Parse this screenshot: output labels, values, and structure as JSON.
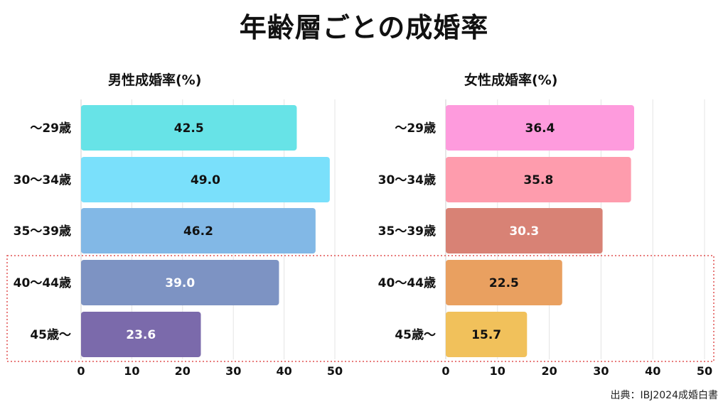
{
  "title": "年齢層ごとの成婚率",
  "source": "出典：IBJ2024成婚白書",
  "colors": {
    "highlight_border": "#e05050",
    "grid": "#e4e4e4",
    "axis": "#cfcfcf",
    "label_dark": "#111111",
    "label_light": "#ffffff"
  },
  "chart_data": [
    {
      "type": "bar",
      "orientation": "horizontal",
      "title": "男性成婚率(%)",
      "categories": [
        "～29歳",
        "30～34歳",
        "35～39歳",
        "40～44歳",
        "45歳～"
      ],
      "values": [
        42.5,
        49.0,
        46.2,
        39.0,
        23.6
      ],
      "value_labels": [
        "42.5",
        "49.0",
        "46.2",
        "39.0",
        "23.6"
      ],
      "bar_colors": [
        "#67e3e7",
        "#7ae0fb",
        "#82b8e6",
        "#7d93c3",
        "#7b6aab"
      ],
      "label_colors": [
        "#111111",
        "#111111",
        "#111111",
        "#ffffff",
        "#ffffff"
      ],
      "xlim": [
        0,
        50
      ],
      "xticks": [
        "0",
        "10",
        "20",
        "30",
        "40",
        "50"
      ],
      "grid": true
    },
    {
      "type": "bar",
      "orientation": "horizontal",
      "title": "女性成婚率(%)",
      "categories": [
        "～29歳",
        "30～34歳",
        "35～39歳",
        "40～44歳",
        "45歳～"
      ],
      "values": [
        36.4,
        35.8,
        30.3,
        22.5,
        15.7
      ],
      "value_labels": [
        "36.4",
        "35.8",
        "30.3",
        "22.5",
        "15.7"
      ],
      "bar_colors": [
        "#fe9bdd",
        "#fe9cad",
        "#d88275",
        "#e9a060",
        "#f1c15b"
      ],
      "label_colors": [
        "#111111",
        "#111111",
        "#ffffff",
        "#111111",
        "#111111"
      ],
      "xlim": [
        0,
        50
      ],
      "xticks": [
        "0",
        "10",
        "20",
        "30",
        "40",
        "50"
      ],
      "grid": true
    }
  ],
  "highlight": {
    "categories": [
      "40～44歳",
      "45歳～"
    ]
  }
}
